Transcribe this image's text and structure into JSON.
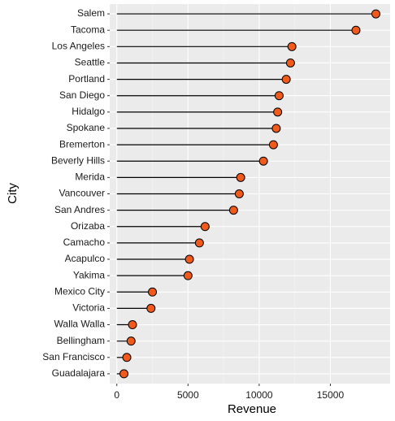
{
  "chart_data": {
    "type": "lollipop",
    "x_label": "Revenue",
    "y_label": "City",
    "categories": [
      "Salem",
      "Tacoma",
      "Los Angeles",
      "Seattle",
      "Portland",
      "San Diego",
      "Hidalgo",
      "Spokane",
      "Bremerton",
      "Beverly Hills",
      "Merida",
      "Vancouver",
      "San Andres",
      "Orizaba",
      "Camacho",
      "Acapulco",
      "Yakima",
      "Mexico City",
      "Victoria",
      "Walla Walla",
      "Bellingham",
      "San Francisco",
      "Guadalajara"
    ],
    "values": [
      18200,
      16800,
      12300,
      12200,
      11900,
      11400,
      11300,
      11200,
      11000,
      10300,
      8700,
      8600,
      8200,
      6200,
      5800,
      5100,
      5000,
      2500,
      2400,
      1100,
      1000,
      700,
      500
    ],
    "color": "#f05a1a",
    "xlim": [
      -500,
      19200
    ],
    "xticks": [
      0,
      5000,
      10000,
      15000
    ],
    "grid": true
  }
}
